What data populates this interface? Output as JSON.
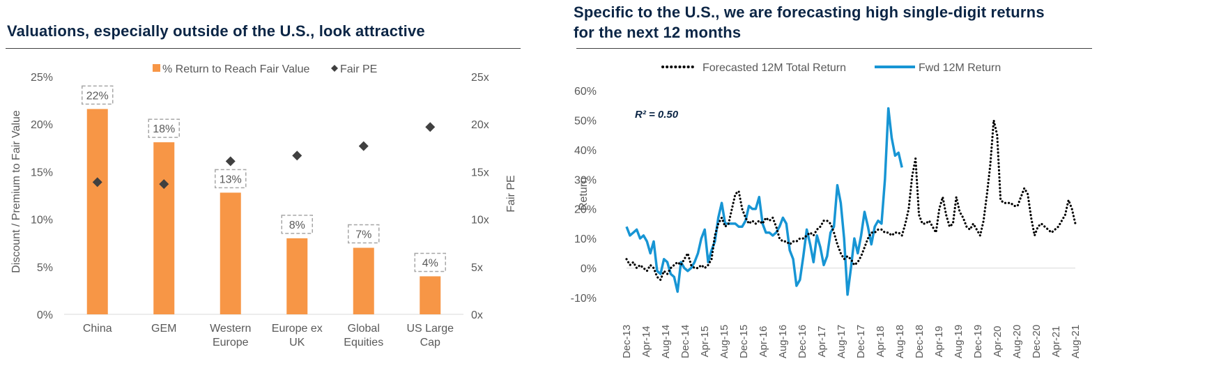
{
  "left_panel": {
    "title": "Valuations, especially outside of the U.S., look attractive"
  },
  "right_panel": {
    "title_line1": "Specific to the U.S., we are forecasting high single-digit returns",
    "title_line2": "for the next 12 months"
  },
  "chart_data": [
    {
      "type": "bar",
      "categories": [
        [
          "China"
        ],
        [
          "GEM"
        ],
        [
          "Western",
          "Europe"
        ],
        [
          "Europe ex",
          "UK"
        ],
        [
          "Global",
          "Equities"
        ],
        [
          "US Large",
          "Cap"
        ]
      ],
      "series": [
        {
          "name": "% Return to Reach Fair Value",
          "values": [
            21.6,
            18.1,
            12.8,
            8.0,
            7.0,
            4.0
          ],
          "labels": [
            "22%",
            "18%",
            "13%",
            "8%",
            "7%",
            "4%"
          ],
          "color": "#f79646",
          "axis": "left"
        },
        {
          "name": "Fair PE",
          "values": [
            13.9,
            13.7,
            16.1,
            16.7,
            17.7,
            19.7
          ],
          "color": "#404040",
          "axis": "right",
          "marker": "diamond"
        }
      ],
      "ylabel": "Discount / Premium to Fair Value",
      "ylabel_right": "Fair PE",
      "ylim": [
        0,
        25
      ],
      "ylim_right": [
        0,
        25
      ],
      "yticks": [
        "0%",
        "5%",
        "10%",
        "15%",
        "20%",
        "25%"
      ],
      "yticks_right": [
        "0x",
        "5x",
        "10x",
        "15x",
        "20x",
        "25x"
      ],
      "legend": "top-center",
      "grid": false
    },
    {
      "type": "line",
      "x_labels": [
        "Dec-13",
        "Apr-14",
        "Aug-14",
        "Dec-14",
        "Apr-15",
        "Aug-15",
        "Dec-15",
        "Apr-16",
        "Aug-16",
        "Dec-16",
        "Apr-17",
        "Aug-17",
        "Dec-17",
        "Apr-18",
        "Aug-18",
        "Dec-18",
        "Apr-19",
        "Aug-19",
        "Dec-19",
        "Apr-20",
        "Aug-20",
        "Dec-20",
        "Apr-21",
        "Aug-21"
      ],
      "ylabel": "Return",
      "ylim": [
        -10,
        60
      ],
      "yticks": [
        "-10%",
        "0%",
        "10%",
        "20%",
        "30%",
        "40%",
        "50%",
        "60%"
      ],
      "annotation": "R² = 0.50",
      "legend": "top-center",
      "grid": false,
      "series": [
        {
          "name": "Forecasted 12M Total Return",
          "style": "dotted",
          "color": "#000000",
          "values": [
            3,
            1,
            2,
            0,
            1,
            0,
            -1,
            1,
            0,
            -3,
            -4,
            -1,
            -2,
            0,
            1,
            2,
            1,
            3,
            5,
            1,
            0,
            0,
            1,
            0,
            1,
            3,
            11,
            15,
            17,
            14,
            15,
            20,
            25,
            26,
            20,
            17,
            15,
            16,
            15,
            16,
            15,
            17,
            16,
            17,
            14,
            10,
            9,
            9,
            8,
            9,
            9,
            10,
            10,
            11,
            12,
            11,
            13,
            14,
            16,
            16,
            15,
            12,
            8,
            5,
            3,
            4,
            3,
            1,
            2,
            4,
            7,
            10,
            12,
            12,
            13,
            13,
            12,
            12,
            11,
            12,
            12,
            11,
            15,
            20,
            31,
            37,
            18,
            15,
            15,
            16,
            14,
            12,
            20,
            24,
            18,
            14,
            15,
            24,
            19,
            17,
            14,
            13,
            15,
            13,
            11,
            16,
            25,
            35,
            50,
            45,
            23,
            22,
            22,
            22,
            21,
            21,
            24,
            27,
            25,
            17,
            11,
            14,
            15,
            14,
            13,
            12,
            13,
            14,
            16,
            18,
            23,
            20,
            15
          ]
        },
        {
          "name": "Fwd 12M Return",
          "style": "solid",
          "color": "#1795d4",
          "values": [
            14,
            11,
            12,
            13,
            10,
            11,
            9,
            5,
            9,
            -1,
            -2,
            3,
            2,
            -2,
            -3,
            -8,
            2,
            0,
            -1,
            0,
            2,
            5,
            10,
            13,
            2,
            6,
            9,
            17,
            22,
            15,
            15,
            15,
            15,
            14,
            14,
            16,
            21,
            20,
            20,
            24,
            15,
            12,
            12,
            11,
            12,
            14,
            17,
            15,
            6,
            3,
            -6,
            -4,
            4,
            13,
            8,
            2,
            11,
            7,
            1,
            4,
            12,
            14,
            28,
            22,
            10,
            -9,
            0,
            10,
            5,
            11,
            19,
            14,
            8,
            14,
            16,
            15,
            30,
            54,
            44,
            38,
            39,
            34
          ]
        }
      ]
    }
  ]
}
